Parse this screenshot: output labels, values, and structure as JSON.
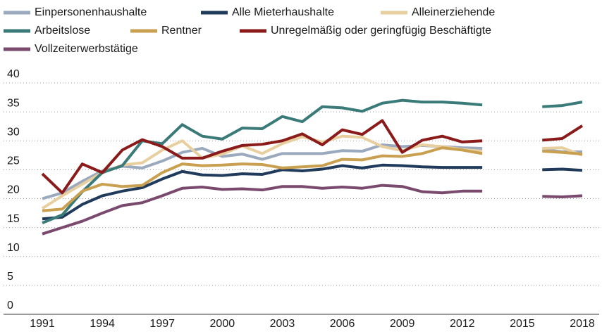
{
  "chart_data": {
    "type": "line",
    "x": [
      1991,
      1992,
      1993,
      1994,
      1995,
      1996,
      1997,
      1998,
      1999,
      2000,
      2001,
      2002,
      2003,
      2004,
      2005,
      2006,
      2007,
      2008,
      2009,
      2010,
      2011,
      2012,
      2013,
      2014,
      2015,
      2016,
      2017,
      2018
    ],
    "series": [
      {
        "name": "Einpersonenhaushalte",
        "color": "#9aa9bd",
        "values": [
          20,
          21,
          23,
          24.8,
          25.6,
          25.3,
          26.5,
          28,
          28.7,
          27.3,
          27.7,
          26.8,
          27.8,
          27.8,
          27.8,
          28.3,
          28.2,
          29.3,
          29,
          29.2,
          29,
          28.8,
          28.7,
          null,
          null,
          28.5,
          28.1,
          28.1
        ]
      },
      {
        "name": "Alle Mieterhaushalte",
        "color": "#1f3a5a",
        "values": [
          16.5,
          16.8,
          19,
          20.5,
          21.3,
          21.9,
          23.4,
          24.7,
          24.1,
          24,
          24.3,
          24.2,
          25,
          24.8,
          25.1,
          25.7,
          25.3,
          25.8,
          25.7,
          25.5,
          25.4,
          25.4,
          25.4,
          null,
          null,
          25,
          25.1,
          24.9
        ]
      },
      {
        "name": "Alleinerziehende",
        "color": "#e8cfa0",
        "values": [
          18.3,
          20.5,
          22.5,
          24.5,
          25.8,
          26.2,
          28.4,
          30,
          27,
          27.7,
          29.1,
          27.8,
          29.5,
          30.7,
          29.8,
          30.8,
          30.6,
          29,
          28.3,
          29.3,
          29,
          28.5,
          28.2,
          null,
          null,
          28.7,
          28.8,
          27.5
        ]
      },
      {
        "name": "Arbeitslose",
        "color": "#3a7a78",
        "values": [
          15.8,
          17.2,
          21.2,
          24.5,
          25.7,
          30,
          29.5,
          32.8,
          30.8,
          30.3,
          32.2,
          32.1,
          34.2,
          33.3,
          35.9,
          35.7,
          35.1,
          36.5,
          37,
          36.7,
          36.7,
          36.5,
          36.2,
          null,
          null,
          35.9,
          36.1,
          36.7
        ]
      },
      {
        "name": "Rentner",
        "color": "#c9a050",
        "values": [
          17.9,
          18.2,
          21.3,
          22.5,
          22.1,
          22.3,
          24.5,
          26,
          25.7,
          25.8,
          26,
          25.9,
          25.3,
          25.5,
          25.7,
          26.8,
          26.7,
          27.4,
          27.3,
          27.8,
          28.8,
          28.4,
          27.8,
          null,
          null,
          28.2,
          28,
          27.7
        ]
      },
      {
        "name": "Unregelmäßig oder geringfügig Beschäftigte",
        "color": "#8b1a1a",
        "values": [
          24.3,
          21,
          26,
          24.5,
          28.4,
          30.2,
          29,
          27,
          27,
          28.2,
          29.2,
          29.4,
          30,
          31.2,
          29.3,
          31.9,
          31.1,
          33.5,
          28,
          30.1,
          30.8,
          29.8,
          30,
          null,
          null,
          30.1,
          30.4,
          32.6
        ]
      },
      {
        "name": "Vollzeiterwerbstätige",
        "color": "#7a4a6e",
        "values": [
          13.9,
          15,
          16.1,
          17.5,
          18.8,
          19.3,
          20.5,
          21.8,
          22,
          21.6,
          21.7,
          21.5,
          22.1,
          22.1,
          21.8,
          22,
          21.8,
          22.3,
          22.1,
          21.2,
          21,
          21.3,
          21.3,
          null,
          null,
          20.4,
          20.3,
          20.5
        ]
      }
    ],
    "xlim": [
      1991,
      2018
    ],
    "xticks": [
      1991,
      1994,
      1997,
      2000,
      2003,
      2006,
      2009,
      2012,
      2015,
      2018
    ],
    "ylim": [
      0,
      40
    ],
    "yticks": [
      0,
      5,
      10,
      15,
      20,
      25,
      30,
      35,
      40
    ],
    "grid": true
  }
}
